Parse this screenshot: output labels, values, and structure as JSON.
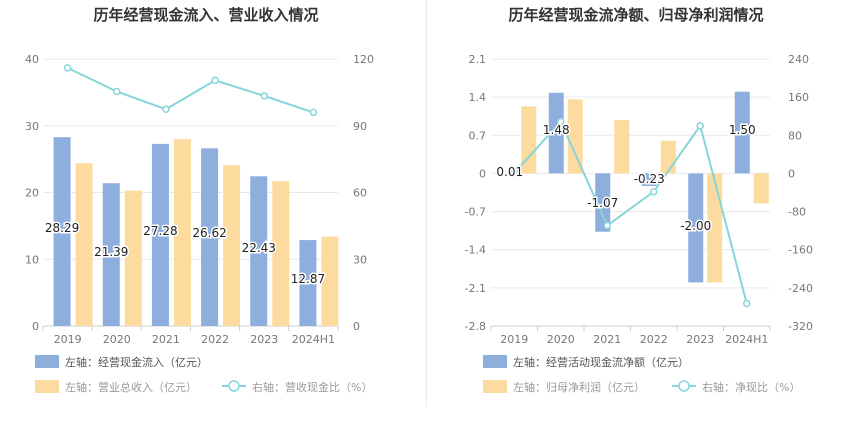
{
  "chart_data": [
    {
      "type": "bar+line",
      "title": "历年经营现金流入、营业收入情况",
      "categories": [
        "2019",
        "2020",
        "2021",
        "2022",
        "2023",
        "2024H1"
      ],
      "left_axis": {
        "ticks": [
          0,
          10,
          20,
          30,
          40
        ],
        "ylim": [
          0,
          40
        ]
      },
      "right_axis": {
        "ticks": [
          0,
          30,
          60,
          90,
          120
        ],
        "ylim": [
          0,
          120
        ]
      },
      "series": [
        {
          "name": "左轴：经营现金流入（亿元）",
          "kind": "bar",
          "axis": "left",
          "color": "#8eaedd",
          "values": [
            28.29,
            21.39,
            27.28,
            26.62,
            22.43,
            12.87
          ],
          "labels": [
            "28.29",
            "21.39",
            "27.28",
            "26.62",
            "22.43",
            "12.87"
          ]
        },
        {
          "name": "左轴：营业总收入（亿元）",
          "kind": "bar",
          "axis": "left",
          "color": "#fddb9f",
          "values": [
            24.4,
            20.3,
            28.0,
            24.1,
            21.7,
            13.4
          ]
        },
        {
          "name": "右轴：营收现金比（%）",
          "kind": "line",
          "axis": "right",
          "color": "#86d5da",
          "values": [
            116.0,
            105.4,
            97.4,
            110.4,
            103.4,
            96.0
          ]
        }
      ]
    },
    {
      "type": "bar+line",
      "title": "历年经营现金流净额、归母净利润情况",
      "categories": [
        "2019",
        "2020",
        "2021",
        "2022",
        "2023",
        "2024H1"
      ],
      "left_axis": {
        "ticks": [
          -2.8,
          -2.1,
          -1.4,
          -0.7,
          0,
          0.7,
          1.4,
          2.1
        ],
        "ylim": [
          -2.8,
          2.1
        ]
      },
      "right_axis": {
        "ticks": [
          -320,
          -240,
          -160,
          -80,
          0,
          80,
          160,
          240
        ],
        "ylim": [
          -320,
          240
        ]
      },
      "series": [
        {
          "name": "左轴：经营活动现金流净额（亿元）",
          "kind": "bar",
          "axis": "left",
          "color": "#8eaedd",
          "values": [
            0.01,
            1.48,
            -1.07,
            -0.23,
            -2.0,
            1.5
          ],
          "labels": [
            "0.01",
            "1.48",
            "-1.07",
            "-0.23",
            "-2.00",
            "1.50"
          ]
        },
        {
          "name": "左轴：归母净利润（亿元）",
          "kind": "bar",
          "axis": "left",
          "color": "#fddb9f",
          "values": [
            1.23,
            1.36,
            0.98,
            0.6,
            -2.0,
            -0.55
          ]
        },
        {
          "name": "右轴：净现比（%）",
          "kind": "line",
          "axis": "right",
          "color": "#86d5da",
          "values": [
            0.8,
            108.8,
            -109.2,
            -38.3,
            100.0,
            -272.7
          ]
        }
      ]
    }
  ]
}
